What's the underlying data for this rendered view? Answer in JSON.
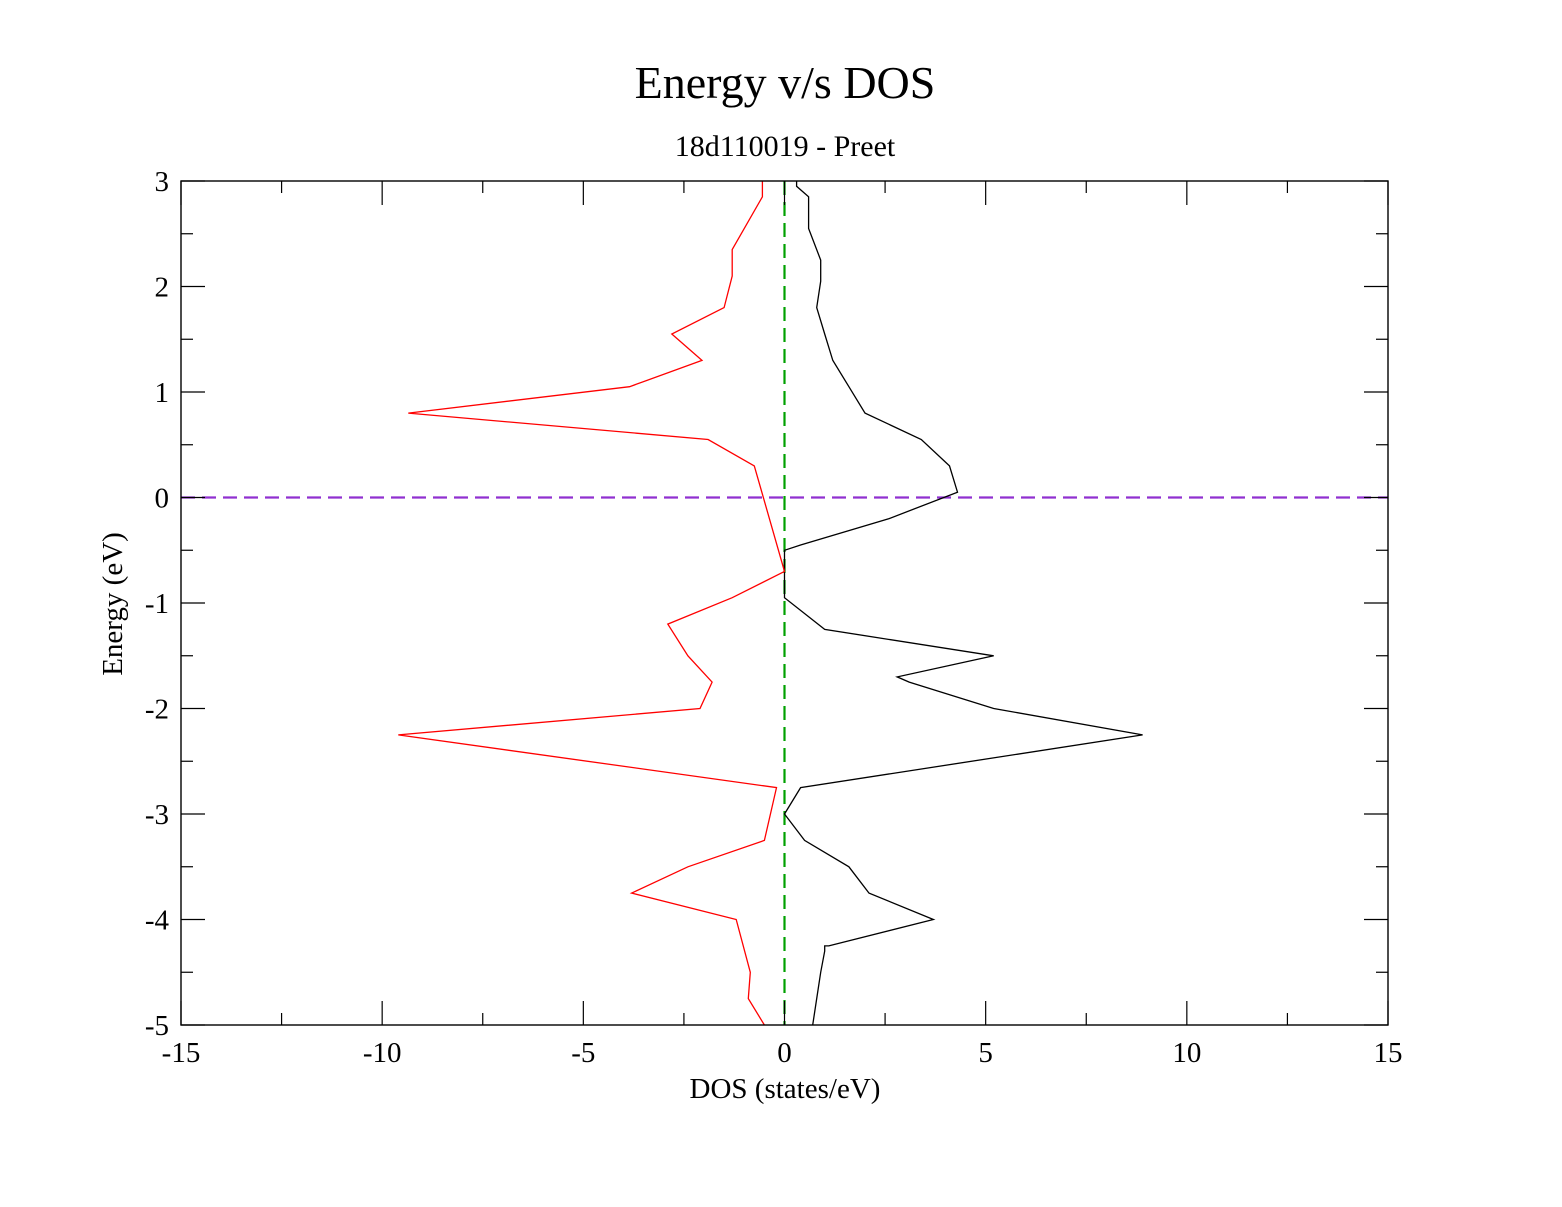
{
  "chart_data": {
    "type": "line",
    "title": "Energy v/s DOS",
    "subtitle": "18d110019 - Preet",
    "xlabel": "DOS (states/eV)",
    "ylabel": "Energy (eV)",
    "xlim": [
      -15,
      15
    ],
    "ylim": [
      -5,
      3
    ],
    "xticks": [
      -15,
      -10,
      -5,
      0,
      5,
      10,
      15
    ],
    "yticks": [
      -5,
      -4,
      -3,
      -2,
      -1,
      0,
      1,
      2,
      3
    ],
    "grid": false,
    "legend": "none",
    "series": [
      {
        "color": "#000000",
        "dos": [
          0.7,
          0.8,
          0.9,
          1.0,
          1.0,
          1.1,
          3.7,
          2.1,
          1.6,
          0.5,
          0.0,
          0.4,
          8.9,
          5.2,
          3.1,
          2.8,
          5.2,
          1.0,
          0.0,
          0.0,
          0.4,
          2.6,
          4.3,
          4.1,
          3.4,
          2.0,
          1.6,
          1.2,
          1.0,
          0.8,
          0.9,
          0.9,
          0.6,
          0.6,
          0.3,
          0.3
        ],
        "energy": [
          -5.0,
          -4.75,
          -4.5,
          -4.3,
          -4.25,
          -4.25,
          -4.0,
          -3.75,
          -3.5,
          -3.25,
          -3.0,
          -2.75,
          -2.25,
          -2.0,
          -1.75,
          -1.7,
          -1.5,
          -1.25,
          -0.95,
          -0.5,
          -0.45,
          -0.2,
          0.05,
          0.3,
          0.55,
          0.8,
          1.05,
          1.3,
          1.55,
          1.8,
          2.05,
          2.25,
          2.55,
          2.85,
          2.95,
          3.0
        ]
      },
      {
        "color": "#ff0000",
        "dos": [
          -0.5,
          -0.9,
          -0.85,
          -1.2,
          -3.8,
          -2.4,
          -0.5,
          -0.2,
          -9.6,
          -2.1,
          -1.8,
          -2.4,
          -2.9,
          -1.3,
          0.0,
          -0.75,
          -1.9,
          -9.35,
          -3.85,
          -2.05,
          -2.8,
          -1.5,
          -1.3,
          -1.3,
          -0.55,
          -0.55
        ],
        "energy": [
          -5.0,
          -4.75,
          -4.5,
          -4.0,
          -3.75,
          -3.5,
          -3.25,
          -2.75,
          -2.25,
          -2.0,
          -1.75,
          -1.5,
          -1.2,
          -0.95,
          -0.7,
          0.3,
          0.55,
          0.8,
          1.05,
          1.3,
          1.55,
          1.8,
          2.1,
          2.35,
          2.85,
          3.0
        ]
      }
    ],
    "reference_lines": [
      {
        "orientation": "horizontal",
        "at": 0,
        "color": "#9030d0",
        "style": "dashed"
      },
      {
        "orientation": "vertical",
        "at": 0,
        "color": "#00a000",
        "style": "dashed"
      }
    ]
  }
}
